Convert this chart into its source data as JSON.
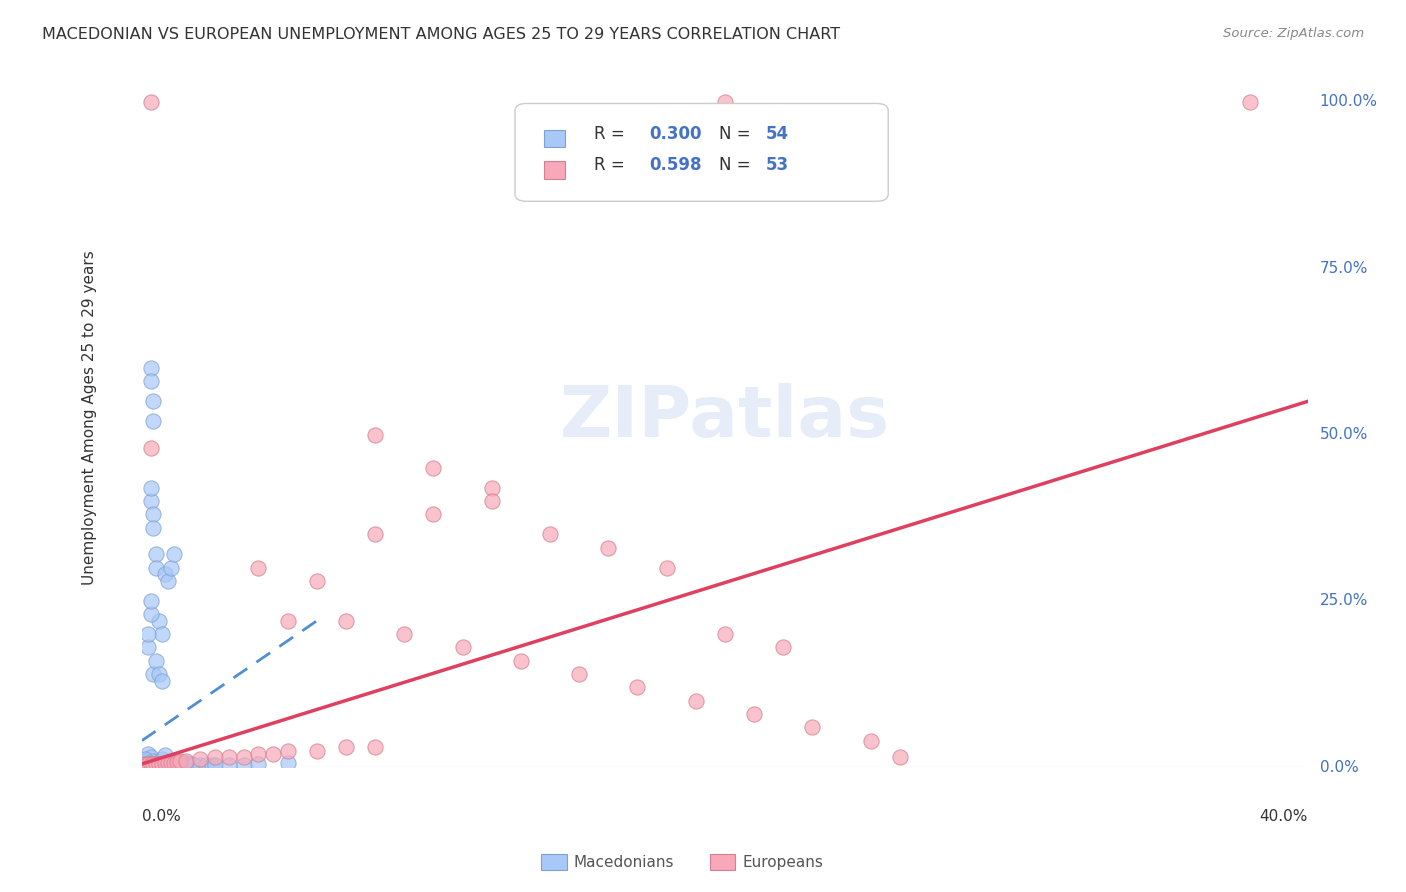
{
  "title": "MACEDONIAN VS EUROPEAN UNEMPLOYMENT AMONG AGES 25 TO 29 YEARS CORRELATION CHART",
  "source": "Source: ZipAtlas.com",
  "ylabel": "Unemployment Among Ages 25 to 29 years",
  "ytick_labels": [
    "0.0%",
    "25.0%",
    "50.0%",
    "75.0%",
    "100.0%"
  ],
  "ytick_values": [
    0.0,
    0.25,
    0.5,
    0.75,
    1.0
  ],
  "xmin": 0.0,
  "xmax": 0.4,
  "ymin": 0.0,
  "ymax": 1.05,
  "macedonian_color": "#a8c8f8",
  "european_color": "#f8a8b8",
  "macedonian_edge": "#80a0d0",
  "european_edge": "#d08090",
  "trendline1_color": "#5090d0",
  "trendline2_color": "#e04060",
  "watermark": "ZIPatlas",
  "background_color": "#ffffff",
  "grid_color": "#e0e0e0",
  "macedonians_scatter": [
    [
      0.002,
      0.02
    ],
    [
      0.003,
      0.015
    ],
    [
      0.004,
      0.01
    ],
    [
      0.005,
      0.005
    ],
    [
      0.006,
      0.008
    ],
    [
      0.007,
      0.012
    ],
    [
      0.008,
      0.018
    ],
    [
      0.009,
      0.007
    ],
    [
      0.01,
      0.005
    ],
    [
      0.011,
      0.006
    ],
    [
      0.012,
      0.01
    ],
    [
      0.013,
      0.008
    ],
    [
      0.015,
      0.007
    ],
    [
      0.016,
      0.005
    ],
    [
      0.017,
      0.005
    ],
    [
      0.018,
      0.004
    ],
    [
      0.02,
      0.004
    ],
    [
      0.022,
      0.003
    ],
    [
      0.024,
      0.003
    ],
    [
      0.025,
      0.004
    ],
    [
      0.003,
      0.4
    ],
    [
      0.003,
      0.42
    ],
    [
      0.004,
      0.38
    ],
    [
      0.004,
      0.36
    ],
    [
      0.005,
      0.32
    ],
    [
      0.005,
      0.3
    ],
    [
      0.006,
      0.22
    ],
    [
      0.007,
      0.2
    ],
    [
      0.008,
      0.29
    ],
    [
      0.009,
      0.28
    ],
    [
      0.01,
      0.3
    ],
    [
      0.011,
      0.32
    ],
    [
      0.003,
      0.6
    ],
    [
      0.003,
      0.58
    ],
    [
      0.004,
      0.55
    ],
    [
      0.004,
      0.52
    ],
    [
      0.002,
      0.18
    ],
    [
      0.002,
      0.2
    ],
    [
      0.003,
      0.23
    ],
    [
      0.003,
      0.25
    ],
    [
      0.004,
      0.14
    ],
    [
      0.005,
      0.16
    ],
    [
      0.006,
      0.14
    ],
    [
      0.007,
      0.13
    ],
    [
      0.001,
      0.005
    ],
    [
      0.001,
      0.008
    ],
    [
      0.001,
      0.01
    ],
    [
      0.001,
      0.012
    ],
    [
      0.002,
      0.004
    ],
    [
      0.002,
      0.006
    ],
    [
      0.03,
      0.003
    ],
    [
      0.035,
      0.004
    ],
    [
      0.04,
      0.005
    ],
    [
      0.05,
      0.006
    ]
  ],
  "europeans_scatter": [
    [
      0.001,
      0.005
    ],
    [
      0.002,
      0.005
    ],
    [
      0.003,
      0.005
    ],
    [
      0.004,
      0.005
    ],
    [
      0.005,
      0.005
    ],
    [
      0.006,
      0.005
    ],
    [
      0.007,
      0.005
    ],
    [
      0.008,
      0.006
    ],
    [
      0.009,
      0.006
    ],
    [
      0.01,
      0.007
    ],
    [
      0.011,
      0.007
    ],
    [
      0.012,
      0.008
    ],
    [
      0.013,
      0.009
    ],
    [
      0.015,
      0.01
    ],
    [
      0.02,
      0.012
    ],
    [
      0.025,
      0.015
    ],
    [
      0.03,
      0.015
    ],
    [
      0.035,
      0.016
    ],
    [
      0.04,
      0.02
    ],
    [
      0.045,
      0.02
    ],
    [
      0.05,
      0.025
    ],
    [
      0.06,
      0.025
    ],
    [
      0.07,
      0.03
    ],
    [
      0.08,
      0.03
    ],
    [
      0.003,
      0.48
    ],
    [
      0.08,
      0.5
    ],
    [
      0.1,
      0.45
    ],
    [
      0.12,
      0.42
    ],
    [
      0.04,
      0.3
    ],
    [
      0.06,
      0.28
    ],
    [
      0.08,
      0.35
    ],
    [
      0.1,
      0.38
    ],
    [
      0.12,
      0.4
    ],
    [
      0.14,
      0.35
    ],
    [
      0.16,
      0.33
    ],
    [
      0.18,
      0.3
    ],
    [
      0.2,
      0.2
    ],
    [
      0.22,
      0.18
    ],
    [
      0.05,
      0.22
    ],
    [
      0.07,
      0.22
    ],
    [
      0.09,
      0.2
    ],
    [
      0.11,
      0.18
    ],
    [
      0.13,
      0.16
    ],
    [
      0.15,
      0.14
    ],
    [
      0.17,
      0.12
    ],
    [
      0.19,
      0.1
    ],
    [
      0.21,
      0.08
    ],
    [
      0.23,
      0.06
    ],
    [
      0.25,
      0.04
    ],
    [
      0.26,
      0.015
    ],
    [
      0.003,
      1.0
    ],
    [
      0.2,
      1.0
    ],
    [
      0.38,
      1.0
    ]
  ],
  "mac_trend_x": [
    0.0,
    0.06
  ],
  "mac_trend_y": [
    0.04,
    0.22
  ],
  "eur_trend_x": [
    0.0,
    0.4
  ],
  "eur_trend_y": [
    0.005,
    0.55
  ]
}
